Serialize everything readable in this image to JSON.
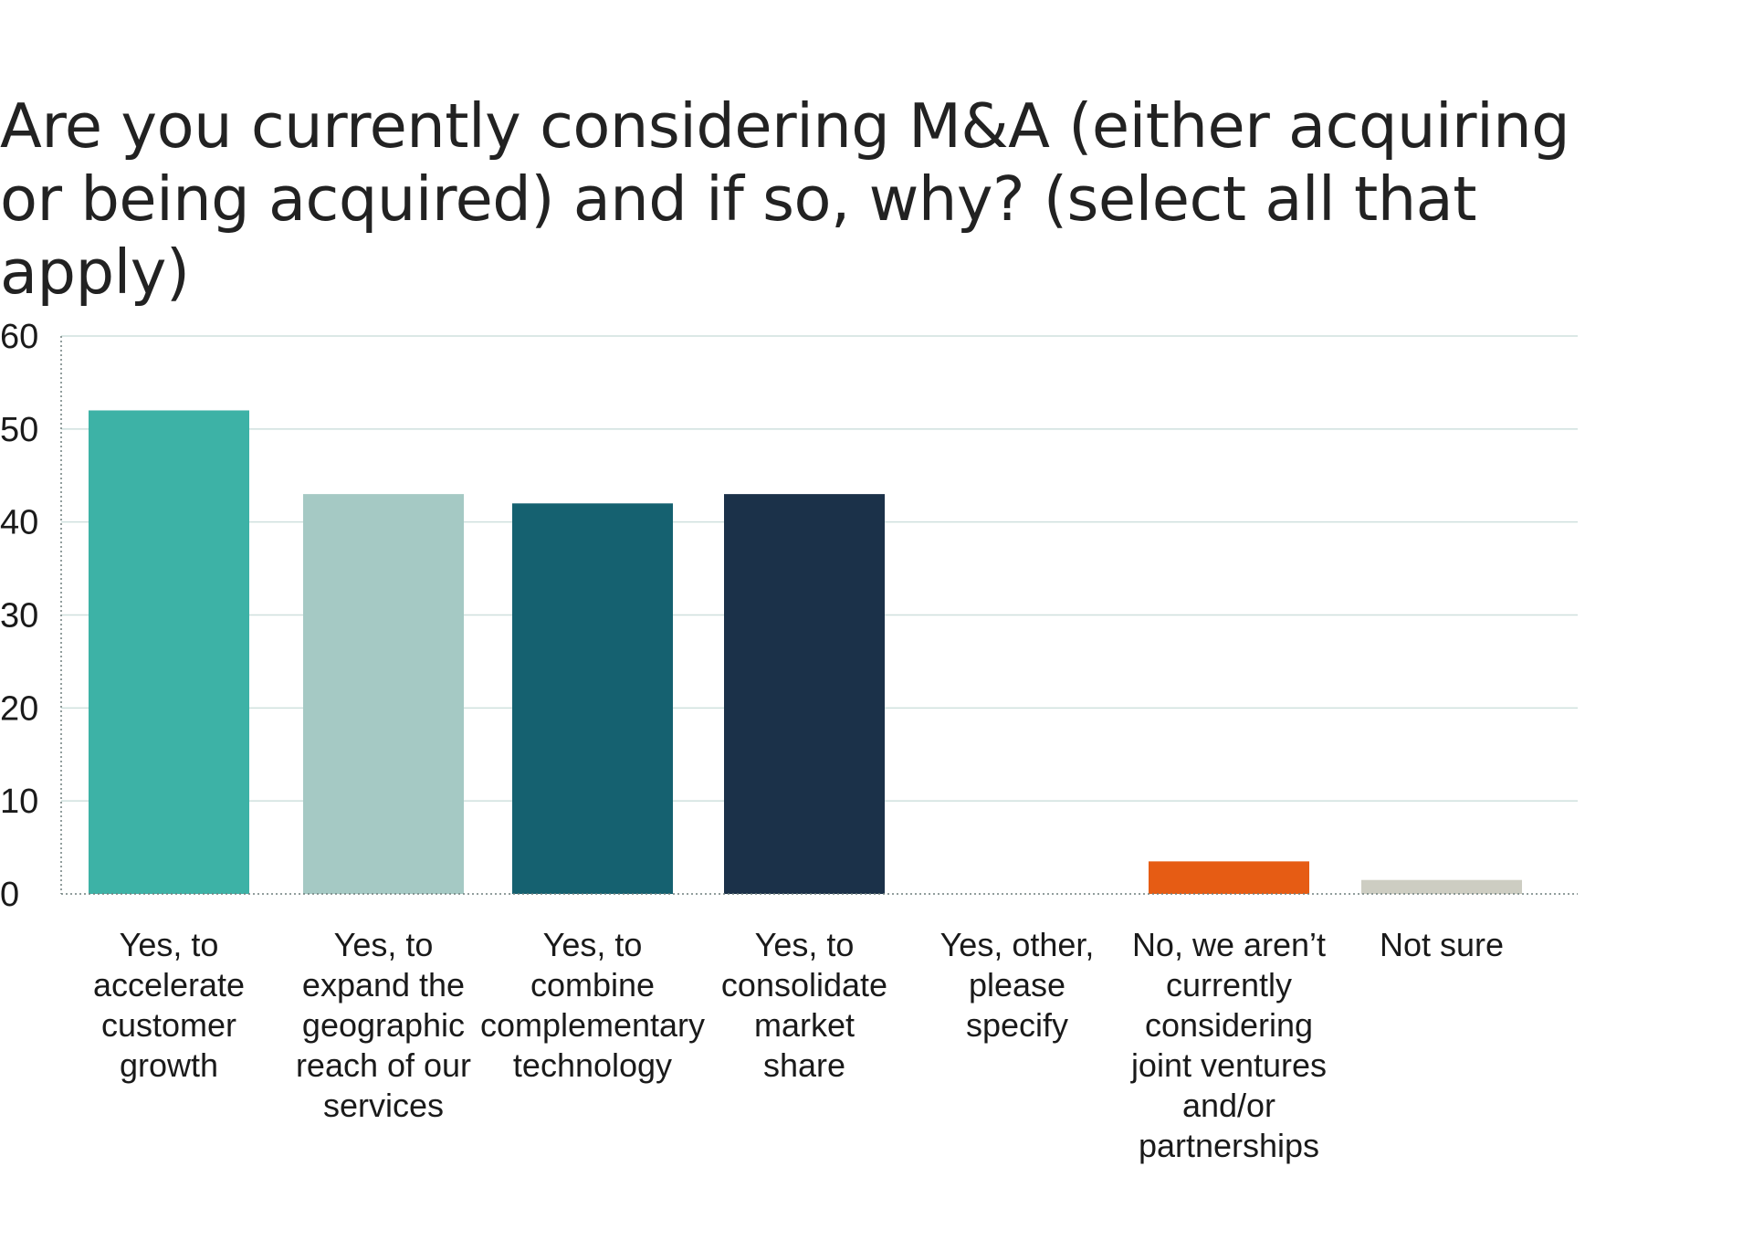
{
  "chart_data": {
    "type": "bar",
    "title": "Are you currently considering M&A (either acquiring or being acquired) and if so, why? (select all that apply)",
    "xlabel": "",
    "ylabel": "",
    "ylim": [
      0,
      60
    ],
    "yticks": [
      "0",
      "10",
      "20",
      "30",
      "40",
      "50",
      "60"
    ],
    "grid": true,
    "categories": [
      "Yes, to accelerate customer growth",
      "Yes, to expand the geographic reach of our services",
      "Yes, to combine complementary technology",
      "Yes, to consolidate market share",
      "Yes, other, please specify",
      "No, we aren’t currently considering joint ventures and/or partnerships",
      "Not sure"
    ],
    "values": [
      52,
      43,
      42,
      43,
      0,
      3.5,
      1.5
    ],
    "colors": [
      "#3db2a6",
      "#a5c9c4",
      "#156170",
      "#1b3149",
      "#ffffff",
      "#e65c14",
      "#cdcdc2"
    ]
  }
}
